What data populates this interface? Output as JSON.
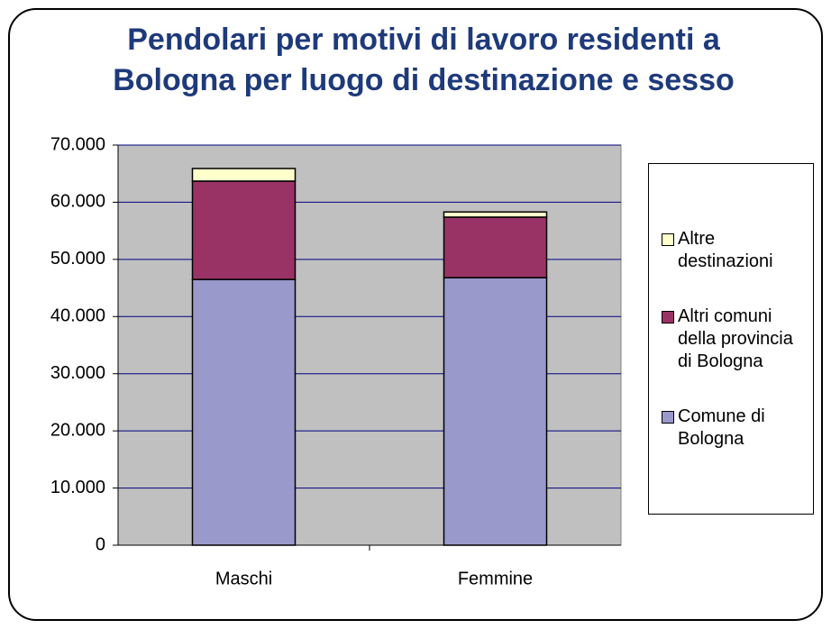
{
  "chart_data": {
    "type": "stacked_bar",
    "title": "Pendolari per motivi di lavoro residenti a Bologna per luogo di destinazione e sesso",
    "categories": [
      "Maschi",
      "Femmine"
    ],
    "series": [
      {
        "name": "Comune di Bologna",
        "color": "#9999cc",
        "values": [
          46500,
          46800
        ]
      },
      {
        "name": "Altri comuni della provincia di Bologna",
        "color": "#993366",
        "values": [
          17200,
          10600
        ]
      },
      {
        "name": "Altre destinazioni",
        "color": "#ffffcc",
        "values": [
          2200,
          900
        ]
      }
    ],
    "ylim": [
      0,
      70000
    ],
    "yticks": [
      0,
      {
        "value": 10000,
        "label": "10.000"
      },
      {
        "value": 20000,
        "label": "20.000"
      },
      {
        "value": 30000,
        "label": "30.000"
      },
      {
        "value": 40000,
        "label": "40.000"
      },
      {
        "value": 50000,
        "label": "50.000"
      },
      {
        "value": 60000,
        "label": "60.000"
      },
      {
        "value": 70000,
        "label": "70.000"
      }
    ],
    "grid": true,
    "legend": "right",
    "plot_background": "#c0c0c0"
  }
}
